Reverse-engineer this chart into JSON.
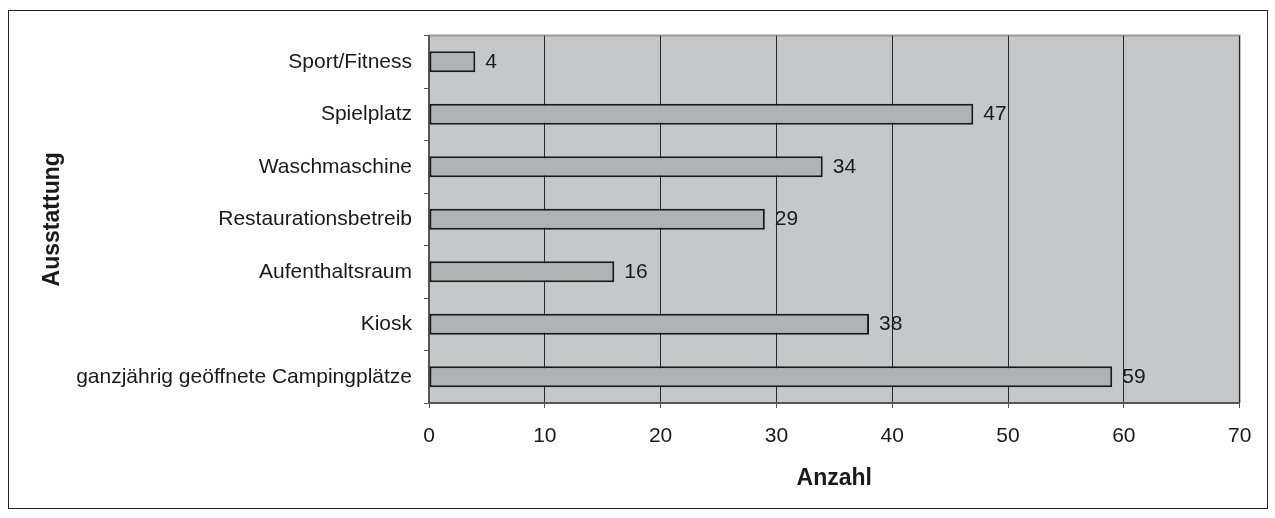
{
  "chart_data": {
    "type": "bar",
    "orientation": "horizontal",
    "xlabel": "Anzahl",
    "ylabel": "Ausstattung",
    "categories": [
      "Sport/Fitness",
      "Spielplatz",
      "Waschmaschine",
      "Restaurationsbetreib",
      "Aufenthaltsraum",
      "Kiosk",
      "ganzjährig geöffnete Campingplätze"
    ],
    "values": [
      4,
      47,
      34,
      29,
      16,
      38,
      59
    ],
    "color": "#b1b2b5",
    "xlim": [
      0,
      70
    ],
    "xticks": [
      0,
      10,
      20,
      30,
      40,
      50,
      60,
      70
    ],
    "grid": "x",
    "data_labels": true
  }
}
